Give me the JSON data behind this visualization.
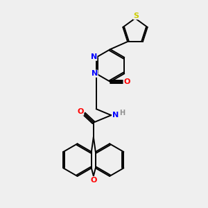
{
  "background_color": "#efefef",
  "bond_color": "#000000",
  "atom_colors": {
    "N": "#0000ff",
    "O": "#ff0000",
    "S": "#cccc00",
    "H": "#909090",
    "C": "#000000"
  },
  "figsize": [
    3.0,
    3.0
  ],
  "dpi": 100
}
